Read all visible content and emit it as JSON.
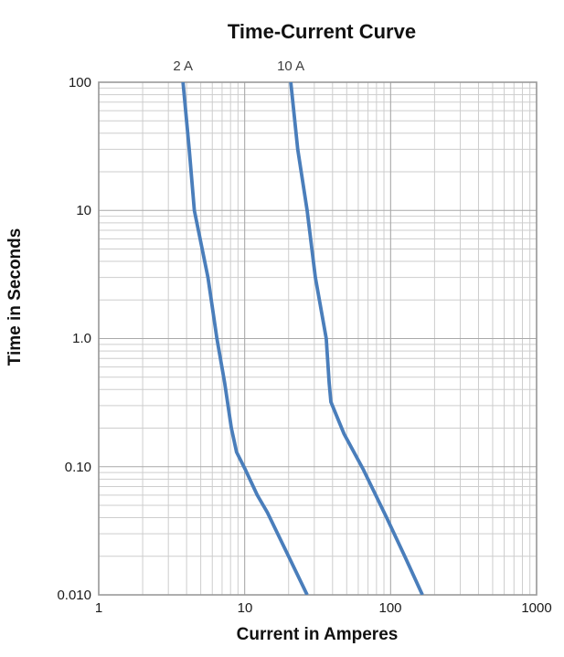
{
  "title": "Time-Current Curve",
  "x_axis": {
    "label": "Current in Amperes",
    "tick_labels": [
      "1",
      "10",
      "100",
      "1000"
    ]
  },
  "y_axis": {
    "label": "Time in Seconds",
    "tick_labels": [
      "100",
      "10",
      "1.0",
      "0.10",
      "0.010"
    ]
  },
  "colors": {
    "curve": "#4a7ebb",
    "grid_minor": "#cdcdcd",
    "grid_major": "#a9a9a9",
    "frame": "#9a9a9a",
    "text": "#111111"
  },
  "chart_data": {
    "type": "line",
    "title": "Time-Current Curve",
    "xlabel": "Current in Amperes",
    "ylabel": "Time in Seconds",
    "x_scale": "log",
    "y_scale": "log",
    "xlim": [
      1,
      1000
    ],
    "ylim": [
      0.01,
      100
    ],
    "grid": "log major and minor gridlines, both axes",
    "legend_position": "labels above curve tops",
    "series": [
      {
        "name": "2 A",
        "points": [
          [
            3.78,
            100
          ],
          [
            4.17,
            30
          ],
          [
            4.52,
            10
          ],
          [
            5.6,
            3
          ],
          [
            6.45,
            1
          ],
          [
            7.3,
            0.45
          ],
          [
            8.1,
            0.2
          ],
          [
            8.8,
            0.13
          ],
          [
            10.1,
            0.095
          ],
          [
            12.2,
            0.06
          ],
          [
            14.3,
            0.044
          ],
          [
            20,
            0.02
          ],
          [
            26.8,
            0.01
          ]
        ]
      },
      {
        "name": "10 A",
        "points": [
          [
            20.7,
            100
          ],
          [
            23.1,
            30
          ],
          [
            26.8,
            10
          ],
          [
            30.5,
            3
          ],
          [
            36.2,
            1
          ],
          [
            37.9,
            0.45
          ],
          [
            39,
            0.32
          ],
          [
            48,
            0.18
          ],
          [
            65,
            0.095
          ],
          [
            94,
            0.04
          ],
          [
            125,
            0.02
          ],
          [
            165,
            0.01
          ]
        ]
      }
    ]
  }
}
